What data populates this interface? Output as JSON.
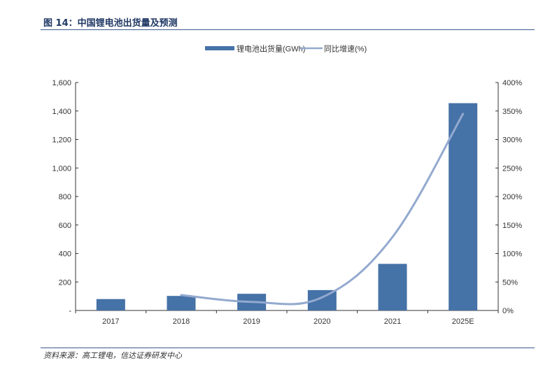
{
  "figure": {
    "title": "图 14：中国锂电池出货量及预测",
    "source": "资料来源：高工锂电，信达证券研发中心"
  },
  "colors": {
    "bar": "#4572a7",
    "line": "#93a9cf",
    "axis": "#333333",
    "rule": "#3c5a8c"
  },
  "chart_data": {
    "type": "bar",
    "title": "",
    "categories": [
      "2017",
      "2018",
      "2019",
      "2020",
      "2021",
      "2025E"
    ],
    "series": [
      {
        "name": "锂电池出货量(GWh)",
        "kind": "bar",
        "axis": "left",
        "values": [
          80,
          102,
          117,
          143,
          327,
          1455
        ]
      },
      {
        "name": "同比增速(%)",
        "kind": "line",
        "axis": "right",
        "values": [
          null,
          27,
          15,
          23,
          129,
          345
        ]
      }
    ],
    "y_left": {
      "ylim": [
        0,
        1600
      ],
      "ticks": [
        0,
        200,
        400,
        600,
        800,
        1000,
        1200,
        1400,
        1600
      ],
      "tick_labels": [
        "-",
        "200",
        "400",
        "600",
        "800",
        "1,000",
        "1,200",
        "1,400",
        "1,600"
      ]
    },
    "y_right": {
      "ylim": [
        0,
        400
      ],
      "ticks": [
        0,
        50,
        100,
        150,
        200,
        250,
        300,
        350,
        400
      ],
      "tick_labels": [
        "0%",
        "50%",
        "100%",
        "150%",
        "200%",
        "250%",
        "300%",
        "350%",
        "400%"
      ]
    },
    "legend": {
      "placement": "top-center"
    },
    "grid": false
  }
}
